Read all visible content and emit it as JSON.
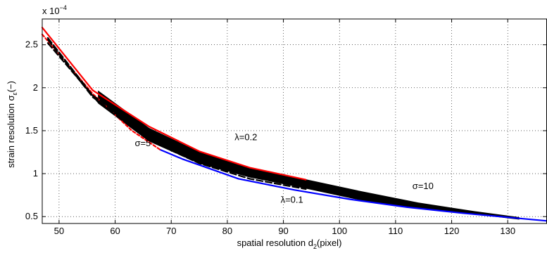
{
  "chart_data": {
    "type": "line",
    "xlabel": "spatial resolution d",
    "xlabel_subscript": "2",
    "xlabel_suffix": "(pixel)",
    "ylabel": "strain resolution σ",
    "ylabel_subscript": "ε",
    "ylabel_suffix": "(−)",
    "y_multiplier_base": "x 10",
    "y_multiplier_exp": "−4",
    "xlim": [
      47,
      137
    ],
    "ylim": [
      0.42,
      2.8
    ],
    "x_ticks": [
      50,
      60,
      70,
      80,
      90,
      100,
      110,
      120,
      130
    ],
    "y_ticks": [
      0.5,
      1,
      1.5,
      2,
      2.5
    ],
    "x_tick_labels": [
      "50",
      "60",
      "70",
      "80",
      "90",
      "100",
      "110",
      "120",
      "130"
    ],
    "y_tick_labels": [
      "0.5",
      "1",
      "1.5",
      "2",
      "2.5"
    ],
    "grid": "dotted",
    "annotations": [
      {
        "text": "σ=5",
        "x": 63.5,
        "y": 1.32
      },
      {
        "text": "λ=0.2",
        "x": 81.3,
        "y": 1.39
      },
      {
        "text": "σ=10",
        "x": 113,
        "y": 0.82
      },
      {
        "text": "λ=0.1",
        "x": 89.5,
        "y": 0.66
      }
    ],
    "series": [
      {
        "color": "#ff0000",
        "x": [
          47,
          56,
          66,
          75,
          84,
          94
        ],
        "y": [
          2.7,
          1.97,
          1.55,
          1.26,
          1.07,
          0.93
        ]
      },
      {
        "color": "#0000ff",
        "x": [
          68,
          72,
          82,
          92,
          102,
          112,
          122,
          132,
          137
        ],
        "y": [
          1.28,
          1.17,
          0.94,
          0.81,
          0.7,
          0.61,
          0.54,
          0.48,
          0.45
        ]
      },
      {
        "color": "#ff0000",
        "dash": "4 3",
        "x": [
          47,
          56,
          63,
          68
        ],
        "y": [
          2.62,
          1.93,
          1.5,
          1.28
        ]
      },
      {
        "color": "#000000",
        "dash": "9 4",
        "x": [
          48,
          56,
          66,
          75,
          84,
          94
        ],
        "y": [
          2.58,
          1.91,
          1.45,
          1.18,
          0.99,
          0.86
        ]
      },
      {
        "color": "#000000",
        "dash": "9 4",
        "x": [
          48,
          56,
          66,
          75,
          84,
          94
        ],
        "y": [
          2.56,
          1.89,
          1.42,
          1.16,
          0.97,
          0.84
        ]
      },
      {
        "color": "#000000",
        "dash": "9 4",
        "x": [
          48,
          57,
          66,
          75,
          84,
          94
        ],
        "y": [
          2.52,
          1.83,
          1.39,
          1.12,
          0.94,
          0.82
        ]
      }
    ],
    "band": {
      "color": "#000000",
      "upper_x": [
        57,
        66,
        75,
        84,
        94,
        104,
        114,
        124,
        132
      ],
      "upper_y": [
        1.96,
        1.53,
        1.25,
        1.06,
        0.93,
        0.79,
        0.66,
        0.56,
        0.49
      ],
      "lower_x": [
        57,
        66,
        75,
        84,
        94,
        104,
        114,
        124,
        132
      ],
      "lower_y": [
        1.82,
        1.38,
        1.12,
        0.96,
        0.83,
        0.69,
        0.6,
        0.53,
        0.47
      ]
    }
  }
}
